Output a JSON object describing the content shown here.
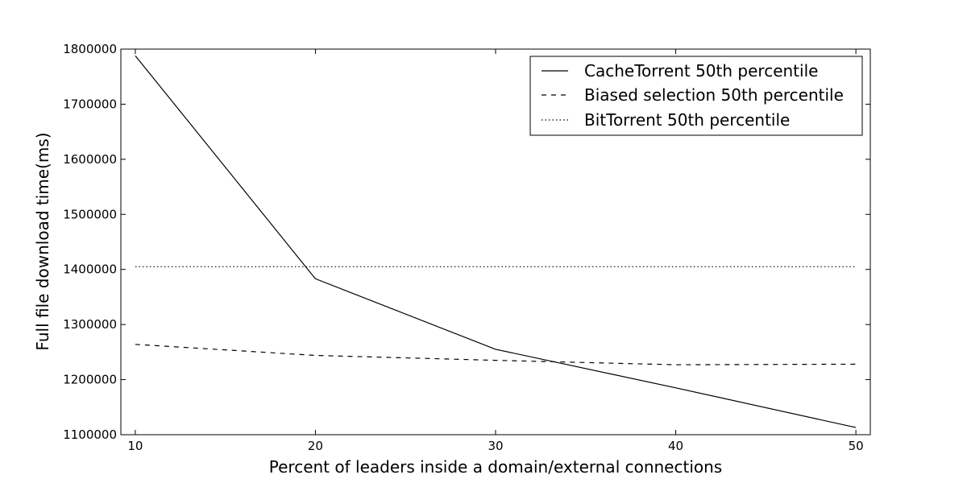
{
  "chart_data": {
    "type": "line",
    "xlabel": "Percent of leaders inside a domain/external connections",
    "ylabel": "Full file download time(ms)",
    "x": [
      10,
      20,
      30,
      40,
      50
    ],
    "xlim": [
      9.2,
      50.8
    ],
    "ylim": [
      1100000,
      1800000
    ],
    "xticks": [
      "10",
      "20",
      "30",
      "40",
      "50"
    ],
    "yticks": [
      "1100000",
      "1200000",
      "1300000",
      "1400000",
      "1500000",
      "1600000",
      "1700000",
      "1800000"
    ],
    "grid": false,
    "legend_position": "top-right",
    "series": [
      {
        "name": "CacheTorrent 50th percentile",
        "values": [
          1788000,
          1383000,
          1255000,
          1185000,
          1113000
        ],
        "style": "solid",
        "color": "#000000"
      },
      {
        "name": "Biased selection 50th percentile",
        "values": [
          1264000,
          1244000,
          1235000,
          1227000,
          1228000
        ],
        "style": "dashed",
        "color": "#000000"
      },
      {
        "name": "BitTorrent 50th percentile",
        "values": [
          1405000,
          1405000,
          1405000,
          1405000,
          1405000
        ],
        "style": "dotted",
        "color": "#000000"
      }
    ]
  }
}
